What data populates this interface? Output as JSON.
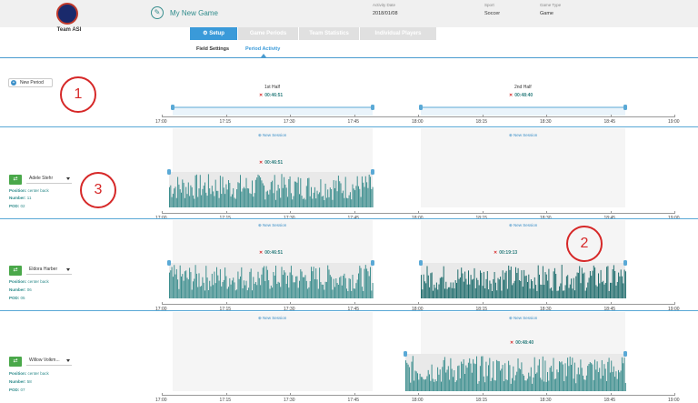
{
  "header": {
    "team_name": "Team ASI",
    "game_title": "My New Game",
    "activity_date_label": "Activity Date",
    "activity_date": "2018/01/08",
    "sport_label": "Sport",
    "sport": "Soccer",
    "game_type_label": "Game Type",
    "game_type": "Game"
  },
  "tabs": [
    {
      "label": "Setup",
      "active": true
    },
    {
      "label": "Game Periods",
      "active": false
    },
    {
      "label": "Team Statistics",
      "active": false
    },
    {
      "label": "Individual Players",
      "active": false
    }
  ],
  "subtabs": [
    {
      "label": "Field Settings",
      "active": false
    },
    {
      "label": "Period Activity",
      "active": true
    }
  ],
  "new_period_label": "New Period",
  "callouts": [
    "1",
    "2",
    "3"
  ],
  "periods": [
    {
      "label": "1st Half",
      "duration": "00:46:51"
    },
    {
      "label": "2nd Half",
      "duration": "00:48:40"
    }
  ],
  "time_ticks": [
    "17:00",
    "17:15",
    "17:30",
    "17:45",
    "18:00",
    "18:15",
    "18:30",
    "18:45",
    "19:00"
  ],
  "new_session_label": "New Session",
  "players": [
    {
      "name": "Adele Stehr",
      "position_label": "Position:",
      "position": "center back",
      "number_label": "Number:",
      "number": "11",
      "pod_label": "POD:",
      "pod": "02",
      "sessions": [
        {
          "duration": "00:46:51"
        }
      ]
    },
    {
      "name": "Eldora Harber",
      "position_label": "Position:",
      "position": "center back",
      "number_label": "Number:",
      "number": "06",
      "pod_label": "POD:",
      "pod": "05",
      "sessions": [
        {
          "duration": "00:46:51"
        },
        {
          "duration": "00:19:13"
        }
      ]
    },
    {
      "name": "Willow Volkm...",
      "position_label": "Position:",
      "position": "center back",
      "number_label": "Number:",
      "number": "58",
      "pod_label": "POD:",
      "pod": "07",
      "sessions": [
        {
          "duration": "00:48:40"
        }
      ]
    }
  ],
  "colors": {
    "accent": "#3a9ad9",
    "activity": "#2e7f7f",
    "callout": "#d62828",
    "pod_icon": "#4aa84a"
  }
}
